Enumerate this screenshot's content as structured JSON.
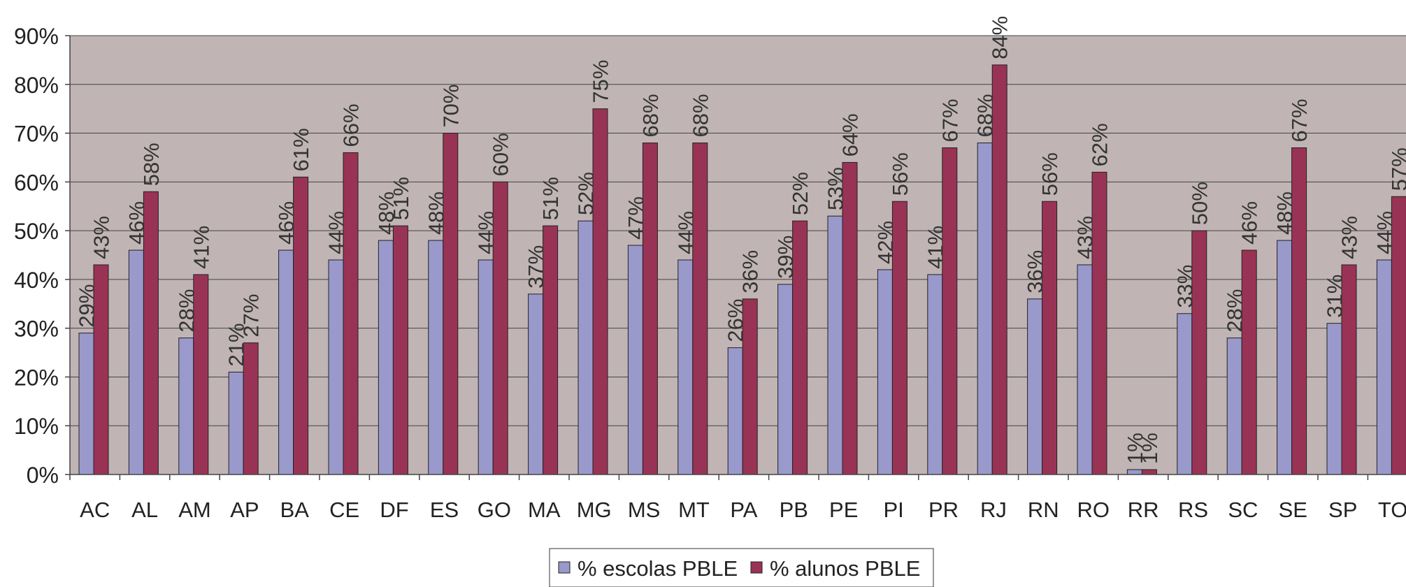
{
  "chart_data": {
    "type": "bar",
    "title": "",
    "xlabel": "",
    "ylabel": "",
    "categories": [
      "AC",
      "AL",
      "AM",
      "AP",
      "BA",
      "CE",
      "DF",
      "ES",
      "GO",
      "MA",
      "MG",
      "MS",
      "MT",
      "PA",
      "PB",
      "PE",
      "PI",
      "PR",
      "RJ",
      "RN",
      "RO",
      "RR",
      "RS",
      "SC",
      "SE",
      "SP",
      "TO"
    ],
    "series": [
      {
        "name": "% escolas PBLE",
        "color": "#9999cc",
        "values": [
          29,
          46,
          28,
          21,
          46,
          44,
          48,
          48,
          44,
          37,
          52,
          47,
          44,
          26,
          39,
          53,
          42,
          41,
          68,
          36,
          43,
          1,
          33,
          28,
          48,
          31,
          44
        ],
        "labels": [
          "29%",
          "46%",
          "28%",
          "21%",
          "46%",
          "44%",
          "48%",
          "48%",
          "44%",
          "37%",
          "52%",
          "47%",
          "44%",
          "26%",
          "39%",
          "53%",
          "42%",
          "41%",
          "68%",
          "36%",
          "43%",
          "1%",
          "33%",
          "28%",
          "48%",
          "31%",
          "44%"
        ]
      },
      {
        "name": "% alunos PBLE",
        "color": "#993355",
        "values": [
          43,
          58,
          41,
          27,
          61,
          66,
          51,
          70,
          60,
          51,
          75,
          68,
          68,
          36,
          52,
          64,
          56,
          67,
          84,
          56,
          62,
          1,
          50,
          46,
          67,
          43,
          57
        ],
        "labels": [
          "43%",
          "58%",
          "41%",
          "27%",
          "61%",
          "66%",
          "51%",
          "70%",
          "60%",
          "51%",
          "75%",
          "68%",
          "68%",
          "36%",
          "52%",
          "64%",
          "56%",
          "67%",
          "84%",
          "56%",
          "62%",
          "1%",
          "50%",
          "46%",
          "67%",
          "43%",
          "57%"
        ]
      }
    ],
    "ylim": [
      0,
      90
    ],
    "yticks": [
      0,
      10,
      20,
      30,
      40,
      50,
      60,
      70,
      80,
      90
    ],
    "ytick_labels": [
      "0%",
      "10%",
      "20%",
      "30%",
      "40%",
      "50%",
      "60%",
      "70%",
      "80%",
      "90%"
    ],
    "grid": true,
    "plot_background": "#c0b4b4",
    "legend_position": "bottom-center"
  }
}
